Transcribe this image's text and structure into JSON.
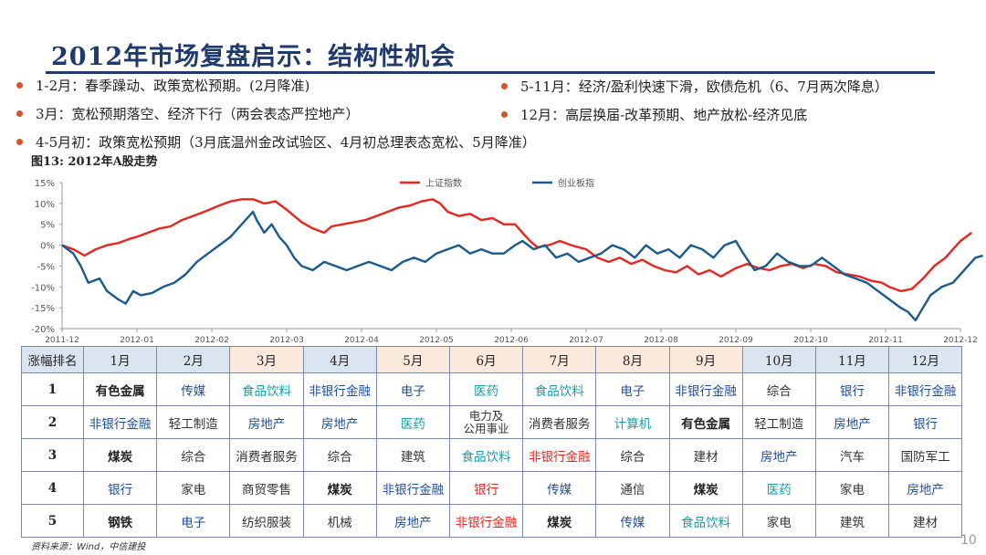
{
  "title": "2012年市场复盘启示：结构性机会",
  "bullets_left": [
    "1-2月：春季躁动、政策宽松预期。(2月降准)",
    "3月：宽松预期落空、经济下行（两会表态严控地产）",
    "4-5月初：政策宽松预期（3月底温州金改试验区、4月初总理表态宽松、5月降准）"
  ],
  "bullets_right": [
    "5-11月：经济/盈利快速下滑，欧债危机（6、7月两次降息）",
    "12月：高层换届-改革预期、地产放松-经济见底"
  ],
  "figure_title": "图13:  2012年A股走势",
  "chart_data": {
    "type": "line",
    "ylim": [
      -20,
      15
    ],
    "yticks": [
      15,
      10,
      5,
      0,
      -5,
      -10,
      -15,
      -20
    ],
    "ytick_labels": [
      "15%",
      "10%",
      "5%",
      "0%",
      "-5%",
      "-10%",
      "-15%",
      "-20%"
    ],
    "xlim": [
      0,
      12
    ],
    "xtick_labels": [
      "2011-12",
      "2012-01",
      "2012-02",
      "2012-03",
      "2012-04",
      "2012-05",
      "2012-06",
      "2012-07",
      "2012-08",
      "2012-09",
      "2012-10",
      "2012-11",
      "2012-12"
    ],
    "legend_position": "top-center",
    "series": [
      {
        "name": "上证指数",
        "color": "#e8251f",
        "points": [
          [
            0,
            0
          ],
          [
            0.15,
            -1
          ],
          [
            0.3,
            -2.5
          ],
          [
            0.45,
            -1
          ],
          [
            0.6,
            0
          ],
          [
            0.75,
            0.5
          ],
          [
            0.9,
            1.5
          ],
          [
            1,
            2
          ],
          [
            1.15,
            3
          ],
          [
            1.3,
            4
          ],
          [
            1.45,
            4.5
          ],
          [
            1.6,
            6
          ],
          [
            1.75,
            7
          ],
          [
            1.9,
            8
          ],
          [
            2.1,
            9.5
          ],
          [
            2.25,
            10.5
          ],
          [
            2.4,
            11
          ],
          [
            2.55,
            11
          ],
          [
            2.7,
            10
          ],
          [
            2.85,
            10.5
          ],
          [
            3,
            8.5
          ],
          [
            3.1,
            7
          ],
          [
            3.2,
            5.5
          ],
          [
            3.35,
            4
          ],
          [
            3.5,
            3
          ],
          [
            3.6,
            4.5
          ],
          [
            3.75,
            5
          ],
          [
            3.9,
            5.5
          ],
          [
            4.05,
            6
          ],
          [
            4.2,
            7
          ],
          [
            4.35,
            8
          ],
          [
            4.5,
            9
          ],
          [
            4.65,
            9.5
          ],
          [
            4.8,
            10.5
          ],
          [
            4.95,
            11
          ],
          [
            5.05,
            10
          ],
          [
            5.15,
            8
          ],
          [
            5.3,
            7
          ],
          [
            5.45,
            7.5
          ],
          [
            5.6,
            6
          ],
          [
            5.75,
            6.5
          ],
          [
            5.9,
            5
          ],
          [
            6.05,
            5
          ],
          [
            6.15,
            3
          ],
          [
            6.25,
            1
          ],
          [
            6.35,
            -0.5
          ],
          [
            6.5,
            0
          ],
          [
            6.65,
            1
          ],
          [
            6.8,
            0
          ],
          [
            7,
            -1
          ],
          [
            7.15,
            -3
          ],
          [
            7.3,
            -4
          ],
          [
            7.45,
            -3
          ],
          [
            7.6,
            -4.5
          ],
          [
            7.75,
            -3.5
          ],
          [
            7.9,
            -5
          ],
          [
            8.05,
            -6
          ],
          [
            8.2,
            -6.5
          ],
          [
            8.35,
            -5
          ],
          [
            8.5,
            -7
          ],
          [
            8.65,
            -6
          ],
          [
            8.8,
            -7.5
          ],
          [
            9,
            -5.5
          ],
          [
            9.15,
            -4.5
          ],
          [
            9.3,
            -5.5
          ],
          [
            9.45,
            -6
          ],
          [
            9.6,
            -5
          ],
          [
            9.75,
            -4.5
          ],
          [
            9.9,
            -5.5
          ],
          [
            10.05,
            -4.5
          ],
          [
            10.2,
            -5
          ],
          [
            10.35,
            -6.5
          ],
          [
            10.5,
            -7
          ],
          [
            10.65,
            -7.5
          ],
          [
            10.8,
            -8.5
          ],
          [
            10.95,
            -9
          ],
          [
            11.05,
            -10
          ],
          [
            11.2,
            -11
          ],
          [
            11.35,
            -10.5
          ],
          [
            11.5,
            -8
          ],
          [
            11.65,
            -5
          ],
          [
            11.8,
            -3
          ],
          [
            11.9,
            -1
          ],
          [
            12,
            1
          ],
          [
            12.15,
            3
          ]
        ]
      },
      {
        "name": "创业板指",
        "color": "#1a5a8c",
        "points": [
          [
            0,
            0
          ],
          [
            0.15,
            -2
          ],
          [
            0.25,
            -5
          ],
          [
            0.35,
            -9
          ],
          [
            0.5,
            -8
          ],
          [
            0.6,
            -11
          ],
          [
            0.75,
            -13
          ],
          [
            0.85,
            -14
          ],
          [
            0.95,
            -11
          ],
          [
            1.05,
            -12
          ],
          [
            1.2,
            -11.5
          ],
          [
            1.35,
            -10
          ],
          [
            1.5,
            -9
          ],
          [
            1.65,
            -7
          ],
          [
            1.8,
            -4
          ],
          [
            1.95,
            -2
          ],
          [
            2.1,
            0
          ],
          [
            2.25,
            2
          ],
          [
            2.4,
            5
          ],
          [
            2.55,
            8
          ],
          [
            2.6,
            6
          ],
          [
            2.7,
            3
          ],
          [
            2.8,
            5
          ],
          [
            2.9,
            2
          ],
          [
            3,
            0
          ],
          [
            3.1,
            -3
          ],
          [
            3.2,
            -5
          ],
          [
            3.35,
            -6
          ],
          [
            3.5,
            -4
          ],
          [
            3.65,
            -5
          ],
          [
            3.8,
            -6
          ],
          [
            3.95,
            -5
          ],
          [
            4.1,
            -4
          ],
          [
            4.25,
            -5
          ],
          [
            4.4,
            -6
          ],
          [
            4.55,
            -4
          ],
          [
            4.7,
            -3
          ],
          [
            4.85,
            -4
          ],
          [
            5,
            -2
          ],
          [
            5.15,
            -1
          ],
          [
            5.3,
            0
          ],
          [
            5.45,
            -2
          ],
          [
            5.6,
            -1
          ],
          [
            5.75,
            -2
          ],
          [
            5.9,
            -2
          ],
          [
            6.05,
            0
          ],
          [
            6.15,
            1
          ],
          [
            6.3,
            -1
          ],
          [
            6.45,
            0
          ],
          [
            6.6,
            -3
          ],
          [
            6.75,
            -2
          ],
          [
            6.9,
            -4
          ],
          [
            7.05,
            -3
          ],
          [
            7.2,
            -2
          ],
          [
            7.35,
            0
          ],
          [
            7.5,
            -1
          ],
          [
            7.65,
            -3
          ],
          [
            7.8,
            0
          ],
          [
            7.95,
            -2
          ],
          [
            8.1,
            -1
          ],
          [
            8.25,
            -3
          ],
          [
            8.4,
            0
          ],
          [
            8.55,
            -1
          ],
          [
            8.7,
            -3
          ],
          [
            8.85,
            0
          ],
          [
            9,
            1
          ],
          [
            9.1,
            -2
          ],
          [
            9.25,
            -6
          ],
          [
            9.4,
            -5
          ],
          [
            9.55,
            -2
          ],
          [
            9.7,
            -4
          ],
          [
            9.85,
            -5
          ],
          [
            10,
            -5
          ],
          [
            10.15,
            -3
          ],
          [
            10.3,
            -5
          ],
          [
            10.45,
            -7
          ],
          [
            10.6,
            -8
          ],
          [
            10.75,
            -9
          ],
          [
            10.9,
            -11
          ],
          [
            11.05,
            -13
          ],
          [
            11.2,
            -15
          ],
          [
            11.3,
            -16
          ],
          [
            11.4,
            -18
          ],
          [
            11.5,
            -15
          ],
          [
            11.6,
            -12
          ],
          [
            11.75,
            -10
          ],
          [
            11.9,
            -9
          ],
          [
            12,
            -7
          ],
          [
            12.1,
            -5
          ],
          [
            12.2,
            -3
          ],
          [
            12.3,
            -2.5
          ]
        ]
      }
    ]
  },
  "table": {
    "corner": "涨幅排名",
    "months": [
      "1月",
      "2月",
      "3月",
      "4月",
      "5月",
      "6月",
      "7月",
      "8月",
      "9月",
      "10月",
      "11月",
      "12月"
    ],
    "month_shade": [
      "blue",
      "blue",
      "peach",
      "blue",
      "peach",
      "peach",
      "peach",
      "peach",
      "peach",
      "blue",
      "blue",
      "blue"
    ],
    "rows": [
      {
        "rank": "1",
        "cells": [
          [
            "有色金属",
            "bold"
          ],
          [
            "传媒",
            "blue"
          ],
          [
            "食品饮料",
            "teal"
          ],
          [
            "非银行金融",
            "blue"
          ],
          [
            "电子",
            "blue"
          ],
          [
            "医药",
            "teal"
          ],
          [
            "食品饮料",
            "teal"
          ],
          [
            "电子",
            "blue"
          ],
          [
            "非银行金融",
            "blue"
          ],
          [
            "综合",
            "dark"
          ],
          [
            "银行",
            "blue"
          ],
          [
            "非银行金融",
            "blue"
          ]
        ]
      },
      {
        "rank": "2",
        "cells": [
          [
            "非银行金融",
            "blue"
          ],
          [
            "轻工制造",
            "dark"
          ],
          [
            "房地产",
            "blue"
          ],
          [
            "房地产",
            "blue"
          ],
          [
            "医药",
            "teal"
          ],
          [
            "电力及\n公用事业",
            "dark"
          ],
          [
            "消费者服务",
            "dark"
          ],
          [
            "计算机",
            "teal"
          ],
          [
            "有色金属",
            "bold"
          ],
          [
            "轻工制造",
            "dark"
          ],
          [
            "房地产",
            "blue"
          ],
          [
            "银行",
            "blue"
          ]
        ]
      },
      {
        "rank": "3",
        "cells": [
          [
            "煤炭",
            "bold"
          ],
          [
            "综合",
            "dark"
          ],
          [
            "消费者服务",
            "dark"
          ],
          [
            "综合",
            "dark"
          ],
          [
            "建筑",
            "dark"
          ],
          [
            "食品饮料",
            "teal"
          ],
          [
            "非银行金融",
            "red"
          ],
          [
            "综合",
            "dark"
          ],
          [
            "建材",
            "dark"
          ],
          [
            "房地产",
            "blue"
          ],
          [
            "汽车",
            "dark"
          ],
          [
            "国防军工",
            "dark"
          ]
        ]
      },
      {
        "rank": "4",
        "cells": [
          [
            "银行",
            "blue"
          ],
          [
            "家电",
            "dark"
          ],
          [
            "商贸零售",
            "dark"
          ],
          [
            "煤炭",
            "bold"
          ],
          [
            "非银行金融",
            "blue"
          ],
          [
            "银行",
            "red"
          ],
          [
            "传媒",
            "blue"
          ],
          [
            "通信",
            "dark"
          ],
          [
            "煤炭",
            "bold"
          ],
          [
            "医药",
            "teal"
          ],
          [
            "家电",
            "dark"
          ],
          [
            "房地产",
            "blue"
          ]
        ]
      },
      {
        "rank": "5",
        "cells": [
          [
            "钢铁",
            "bold"
          ],
          [
            "电子",
            "blue"
          ],
          [
            "纺织服装",
            "dark"
          ],
          [
            "机械",
            "dark"
          ],
          [
            "房地产",
            "blue"
          ],
          [
            "非银行金融",
            "red"
          ],
          [
            "煤炭",
            "bold"
          ],
          [
            "传媒",
            "blue"
          ],
          [
            "食品饮料",
            "teal"
          ],
          [
            "家电",
            "dark"
          ],
          [
            "建筑",
            "dark"
          ],
          [
            "建材",
            "dark"
          ]
        ]
      }
    ]
  },
  "source": "资料来源：Wind，中信建投",
  "page_number": "10"
}
